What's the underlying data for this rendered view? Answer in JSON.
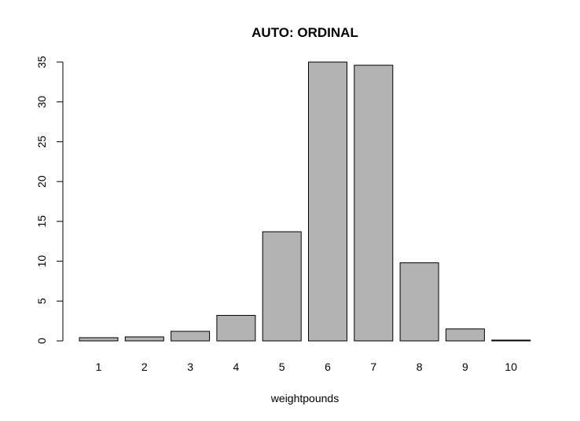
{
  "chart_data": {
    "type": "bar",
    "title": "AUTO: ORDINAL",
    "xlabel": "weightpounds",
    "ylabel": "",
    "categories": [
      "1",
      "2",
      "3",
      "4",
      "5",
      "6",
      "7",
      "8",
      "9",
      "10"
    ],
    "values": [
      0.4,
      0.5,
      1.2,
      3.2,
      13.7,
      35.0,
      34.6,
      9.8,
      1.5,
      0.1
    ],
    "ylim": [
      0,
      35
    ],
    "yticks": [
      0,
      5,
      10,
      15,
      20,
      25,
      30,
      35
    ],
    "bar_color": "#b3b3b3",
    "border_color": "#000000",
    "grid": false,
    "legend": "none"
  }
}
